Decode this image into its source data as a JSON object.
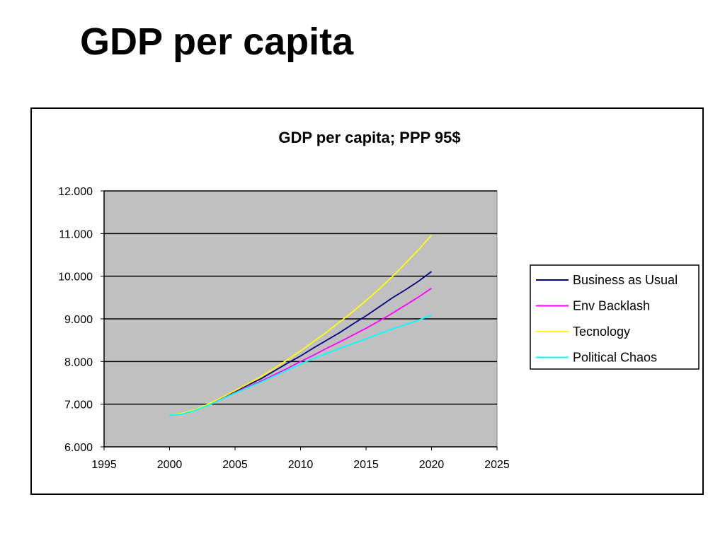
{
  "slide": {
    "title": "GDP per capita"
  },
  "chart_data": {
    "type": "line",
    "title": "GDP per capita; PPP 95$",
    "xlabel": "",
    "ylabel": "",
    "xlim": [
      1995,
      2025
    ],
    "ylim": [
      6000,
      12000
    ],
    "x_ticks": [
      1995,
      2000,
      2005,
      2010,
      2015,
      2020,
      2025
    ],
    "y_ticks": [
      6000,
      7000,
      8000,
      9000,
      10000,
      11000,
      12000
    ],
    "x_tick_labels": [
      "1995",
      "2000",
      "2005",
      "2010",
      "2015",
      "2020",
      "2025"
    ],
    "y_tick_labels": [
      "6.000",
      "7.000",
      "8.000",
      "9.000",
      "10.000",
      "11.000",
      "12.000"
    ],
    "grid": "horizontal",
    "plot_background": "#c0c0c0",
    "legend_position": "right",
    "x": [
      2000,
      2001,
      2002,
      2003,
      2004,
      2005,
      2006,
      2007,
      2008,
      2009,
      2010,
      2011,
      2012,
      2013,
      2014,
      2015,
      2016,
      2017,
      2018,
      2019,
      2020
    ],
    "series": [
      {
        "name": "Business as Usual",
        "color": "#000080",
        "values": [
          6740,
          6780,
          6880,
          7000,
          7150,
          7300,
          7450,
          7600,
          7780,
          7960,
          8130,
          8320,
          8500,
          8680,
          8880,
          9070,
          9280,
          9490,
          9680,
          9880,
          10110
        ]
      },
      {
        "name": "Env Backlash",
        "color": "#ff00ff",
        "values": [
          6740,
          6780,
          6870,
          6990,
          7130,
          7270,
          7410,
          7540,
          7690,
          7840,
          8000,
          8150,
          8310,
          8460,
          8620,
          8780,
          8950,
          9130,
          9320,
          9510,
          9720
        ]
      },
      {
        "name": "Tecnology",
        "color": "#ffff00",
        "values": [
          6740,
          6790,
          6880,
          7010,
          7160,
          7320,
          7480,
          7650,
          7840,
          8040,
          8250,
          8470,
          8690,
          8930,
          9170,
          9430,
          9700,
          9990,
          10300,
          10620,
          10960
        ]
      },
      {
        "name": "Political Chaos",
        "color": "#00ffff",
        "values": [
          6740,
          6770,
          6860,
          6980,
          7120,
          7260,
          7390,
          7520,
          7660,
          7800,
          7940,
          8070,
          8190,
          8310,
          8420,
          8530,
          8650,
          8760,
          8860,
          8970,
          9090
        ]
      }
    ]
  }
}
